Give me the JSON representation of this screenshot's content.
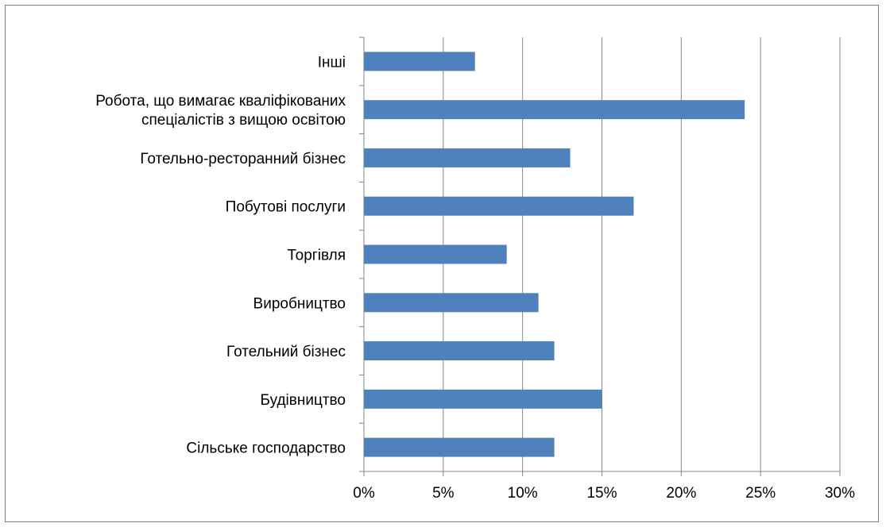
{
  "chart_data": {
    "type": "bar",
    "orientation": "horizontal",
    "title": "",
    "xlabel": "",
    "ylabel": "",
    "categories": [
      [
        "Інші"
      ],
      [
        "Робота, що вимагає кваліфікованих",
        "спеціалістів з вищою освітою"
      ],
      [
        "Готельно-ресторанний бізнес"
      ],
      [
        "Побутові послуги"
      ],
      [
        "Торгівля"
      ],
      [
        "Виробництво"
      ],
      [
        "Готельний бізнес"
      ],
      [
        "Будівництво"
      ],
      [
        "Сільське господарство"
      ]
    ],
    "values": [
      7,
      24,
      13,
      17,
      9,
      11,
      12,
      15,
      12
    ],
    "xlim": [
      0,
      30
    ],
    "xticks": [
      "0%",
      "5%",
      "10%",
      "15%",
      "20%",
      "25%",
      "30%"
    ],
    "tick_values": [
      0,
      5,
      10,
      15,
      20,
      25,
      30
    ],
    "grid": "vertical",
    "legend": "none",
    "bar_color": "#4f81bd",
    "grid_color": "#868686"
  }
}
